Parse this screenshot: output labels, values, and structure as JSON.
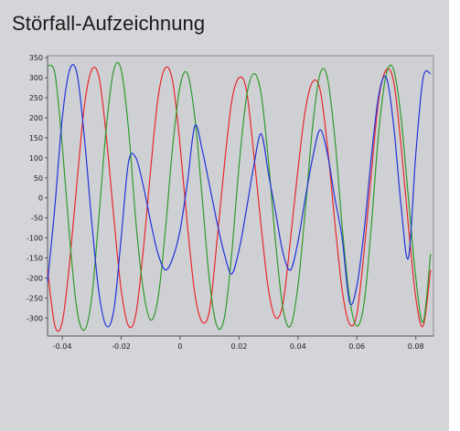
{
  "title": "Störfall-Aufzeichnung",
  "chart_data": {
    "type": "line",
    "title": "Störfall-Aufzeichnung",
    "xlabel": "",
    "ylabel": "",
    "xlim": [
      -0.045,
      0.086
    ],
    "ylim": [
      -345,
      355
    ],
    "x_ticks": [
      -0.04,
      -0.02,
      0,
      0.02,
      0.04,
      0.06,
      0.08
    ],
    "x_tick_labels": [
      "-0.04",
      "-0.02",
      "0",
      "0.02",
      "0.04",
      "0.06",
      "0.08"
    ],
    "y_ticks": [
      350,
      300,
      250,
      200,
      150,
      100,
      50,
      0,
      -50,
      -100,
      -150,
      -200,
      -250,
      -300
    ],
    "y_tick_labels": [
      "350",
      "300",
      "250",
      "200",
      "150",
      "100",
      "50",
      "0",
      "-50",
      "-100",
      "-150",
      "-200",
      "-250",
      "-300"
    ],
    "grid": false,
    "legend": "none",
    "series": [
      {
        "color": "#e8262a",
        "x": [
          -0.045,
          -0.0425,
          -0.04,
          -0.0375,
          -0.035,
          -0.0325,
          -0.03,
          -0.0275,
          -0.025,
          -0.0225,
          -0.02,
          -0.0175,
          -0.015,
          -0.0125,
          -0.01,
          -0.0075,
          -0.005,
          -0.0025,
          0.0,
          0.0025,
          0.005,
          0.0075,
          0.01,
          0.0125,
          0.015,
          0.0175,
          0.02,
          0.0225,
          0.025,
          0.0275,
          0.03,
          0.0325,
          0.035,
          0.0375,
          0.04,
          0.0425,
          0.045,
          0.0475,
          0.05,
          0.0525,
          0.055,
          0.0575,
          0.06,
          0.0625,
          0.065,
          0.0675,
          0.07,
          0.0725,
          0.075,
          0.0775,
          0.08,
          0.0825,
          0.085
        ],
        "y": [
          -180,
          -320,
          -310,
          -160,
          40,
          230,
          320,
          300,
          150,
          -50,
          -230,
          -320,
          -290,
          -130,
          70,
          250,
          325,
          290,
          130,
          -70,
          -240,
          -310,
          -280,
          -110,
          80,
          240,
          300,
          270,
          110,
          -70,
          -230,
          -300,
          -260,
          -100,
          70,
          220,
          290,
          270,
          130,
          -60,
          -230,
          -315,
          -290,
          -130,
          70,
          250,
          320,
          290,
          130,
          -70,
          -250,
          -320,
          -180
        ]
      },
      {
        "color": "#2f9a2a",
        "x": [
          -0.045,
          -0.0425,
          -0.04,
          -0.0375,
          -0.035,
          -0.0325,
          -0.03,
          -0.0275,
          -0.025,
          -0.0225,
          -0.02,
          -0.0175,
          -0.015,
          -0.0125,
          -0.01,
          -0.0075,
          -0.005,
          -0.0025,
          0.0,
          0.0025,
          0.005,
          0.0075,
          0.01,
          0.0125,
          0.015,
          0.0175,
          0.02,
          0.0225,
          0.025,
          0.0275,
          0.03,
          0.0325,
          0.035,
          0.0375,
          0.04,
          0.0425,
          0.045,
          0.0475,
          0.05,
          0.0525,
          0.055,
          0.0575,
          0.06,
          0.0625,
          0.065,
          0.0675,
          0.07,
          0.0725,
          0.075,
          0.0775,
          0.08,
          0.0825,
          0.085
        ],
        "y": [
          330,
          310,
          130,
          -100,
          -280,
          -330,
          -250,
          -40,
          180,
          320,
          320,
          170,
          -60,
          -230,
          -305,
          -250,
          -80,
          130,
          280,
          310,
          200,
          0,
          -210,
          -320,
          -300,
          -140,
          80,
          250,
          310,
          260,
          90,
          -120,
          -280,
          -320,
          -220,
          -30,
          180,
          310,
          300,
          150,
          -70,
          -250,
          -320,
          -260,
          -60,
          170,
          310,
          320,
          200,
          0,
          -200,
          -310,
          -140
        ]
      },
      {
        "color": "#1f32d8",
        "x": [
          -0.045,
          -0.0425,
          -0.04,
          -0.0375,
          -0.035,
          -0.0325,
          -0.03,
          -0.0275,
          -0.025,
          -0.0225,
          -0.02,
          -0.0175,
          -0.015,
          -0.0125,
          -0.01,
          -0.0075,
          -0.005,
          -0.0025,
          0.0,
          0.0025,
          0.005,
          0.0075,
          0.01,
          0.0125,
          0.015,
          0.0175,
          0.02,
          0.0225,
          0.025,
          0.0275,
          0.03,
          0.0325,
          0.035,
          0.0375,
          0.04,
          0.0425,
          0.045,
          0.0475,
          0.05,
          0.0525,
          0.055,
          0.0575,
          0.06,
          0.0625,
          0.065,
          0.0675,
          0.07,
          0.0725,
          0.075,
          0.0775,
          0.08,
          0.0825,
          0.085
        ],
        "y": [
          -210,
          -20,
          200,
          320,
          310,
          150,
          -60,
          -240,
          -320,
          -280,
          -100,
          90,
          100,
          30,
          -60,
          -140,
          -180,
          -150,
          -80,
          40,
          180,
          120,
          30,
          -60,
          -140,
          -190,
          -130,
          -30,
          80,
          160,
          60,
          -40,
          -140,
          -180,
          -110,
          0,
          100,
          170,
          110,
          0,
          -100,
          -260,
          -220,
          -80,
          110,
          260,
          300,
          180,
          -20,
          -150,
          110,
          300,
          310
        ]
      }
    ]
  }
}
